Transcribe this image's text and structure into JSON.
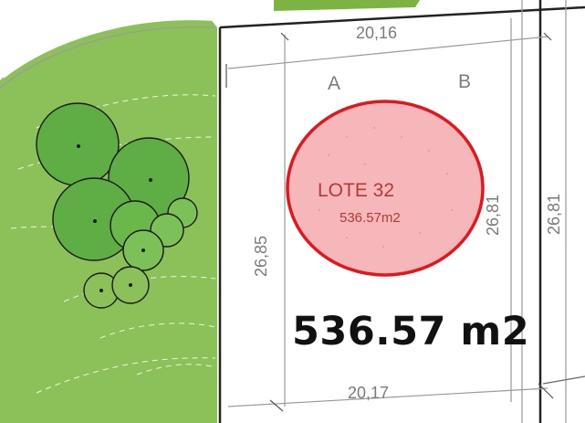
{
  "plot": {
    "top_width": "20,16",
    "bottom_width": "20,17",
    "left_depth": "26,85",
    "right_depth": "26,81",
    "neighbor_depth": "26,81",
    "corner_a": "A",
    "corner_b": "B"
  },
  "lote": {
    "name": "LOTE 32",
    "area_small": "536.57m2",
    "area_large": "536.57 m2"
  },
  "colors": {
    "green_area": "#8bc257",
    "tree_fill": "#5fae45",
    "highlight_fill": "#f5b7b9",
    "highlight_stroke": "#e3161c"
  }
}
